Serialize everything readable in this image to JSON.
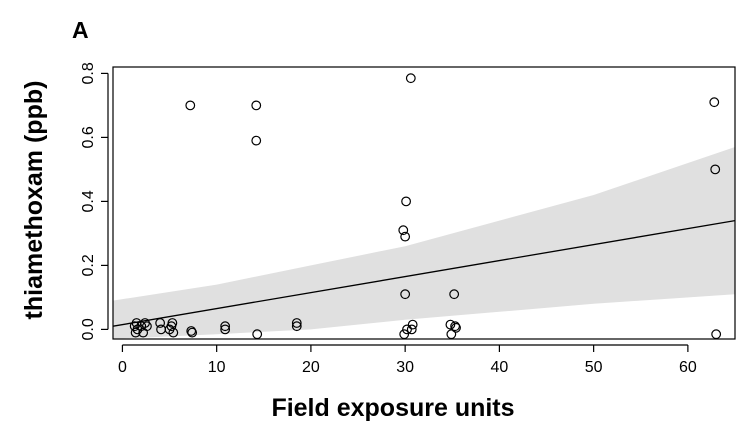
{
  "chart_data": {
    "type": "scatter",
    "panel_label": "A",
    "title": "",
    "xlabel": "Field exposure units",
    "ylabel": "thiamethoxam (ppb)",
    "xlim": [
      -1,
      65
    ],
    "ylim": [
      -0.03,
      0.82
    ],
    "xticks": [
      0,
      10,
      20,
      30,
      40,
      50,
      60
    ],
    "yticks": [
      0.0,
      0.2,
      0.4,
      0.6,
      0.8
    ],
    "ytick_labels": [
      "0.0",
      "0.2",
      "0.4",
      "0.6",
      "0.8"
    ],
    "grid": false,
    "legend": "none",
    "points": [
      {
        "x": 1.3,
        "y": 0.01
      },
      {
        "x": 1.5,
        "y": 0.02
      },
      {
        "x": 1.6,
        "y": 0.0
      },
      {
        "x": 1.4,
        "y": -0.01
      },
      {
        "x": 2.0,
        "y": 0.01
      },
      {
        "x": 2.2,
        "y": -0.01
      },
      {
        "x": 2.4,
        "y": 0.02
      },
      {
        "x": 2.6,
        "y": 0.01
      },
      {
        "x": 4.0,
        "y": 0.02
      },
      {
        "x": 4.1,
        "y": 0.0
      },
      {
        "x": 5.2,
        "y": 0.01
      },
      {
        "x": 5.3,
        "y": 0.02
      },
      {
        "x": 5.4,
        "y": -0.01
      },
      {
        "x": 5.0,
        "y": 0.0
      },
      {
        "x": 7.3,
        "y": -0.005
      },
      {
        "x": 7.4,
        "y": -0.01
      },
      {
        "x": 7.2,
        "y": 0.7
      },
      {
        "x": 10.9,
        "y": 0.01
      },
      {
        "x": 10.9,
        "y": 0.0
      },
      {
        "x": 14.2,
        "y": 0.7
      },
      {
        "x": 14.2,
        "y": 0.59
      },
      {
        "x": 14.3,
        "y": -0.015
      },
      {
        "x": 18.5,
        "y": 0.02
      },
      {
        "x": 18.5,
        "y": 0.01
      },
      {
        "x": 29.8,
        "y": 0.31
      },
      {
        "x": 30.1,
        "y": 0.4
      },
      {
        "x": 30.0,
        "y": 0.29
      },
      {
        "x": 30.0,
        "y": 0.11
      },
      {
        "x": 30.2,
        "y": 0.0
      },
      {
        "x": 29.9,
        "y": -0.015
      },
      {
        "x": 30.6,
        "y": 0.785
      },
      {
        "x": 30.8,
        "y": 0.015
      },
      {
        "x": 30.7,
        "y": 0.0
      },
      {
        "x": 34.8,
        "y": 0.015
      },
      {
        "x": 34.9,
        "y": -0.015
      },
      {
        "x": 35.2,
        "y": 0.11
      },
      {
        "x": 35.3,
        "y": 0.01
      },
      {
        "x": 35.4,
        "y": 0.005
      },
      {
        "x": 62.8,
        "y": 0.71
      },
      {
        "x": 62.9,
        "y": 0.5
      },
      {
        "x": 63.0,
        "y": -0.015
      }
    ],
    "fit_line": {
      "x": [
        -1,
        65
      ],
      "y": [
        0.01,
        0.34
      ]
    },
    "confidence_band": {
      "x": [
        -1,
        10,
        20,
        30,
        40,
        50,
        65
      ],
      "upper": [
        0.09,
        0.14,
        0.2,
        0.26,
        0.34,
        0.42,
        0.57
      ],
      "lower": [
        -0.03,
        -0.015,
        0.0,
        0.03,
        0.055,
        0.08,
        0.11
      ]
    },
    "colors": {
      "band": "#e0e0e0",
      "line": "#000000",
      "points": "#000000"
    }
  }
}
